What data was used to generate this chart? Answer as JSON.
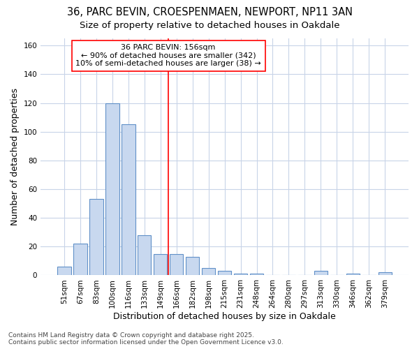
{
  "title_line1": "36, PARC BEVIN, CROESPENMAEN, NEWPORT, NP11 3AN",
  "title_line2": "Size of property relative to detached houses in Oakdale",
  "xlabel": "Distribution of detached houses by size in Oakdale",
  "ylabel": "Number of detached properties",
  "categories": [
    "51sqm",
    "67sqm",
    "83sqm",
    "100sqm",
    "116sqm",
    "133sqm",
    "149sqm",
    "166sqm",
    "182sqm",
    "198sqm",
    "215sqm",
    "231sqm",
    "248sqm",
    "264sqm",
    "280sqm",
    "297sqm",
    "313sqm",
    "330sqm",
    "346sqm",
    "362sqm",
    "379sqm"
  ],
  "values": [
    6,
    22,
    53,
    120,
    105,
    28,
    15,
    15,
    13,
    5,
    3,
    1,
    1,
    0,
    0,
    0,
    3,
    0,
    1,
    0,
    2
  ],
  "bar_color": "#c8d8ef",
  "bar_edge_color": "#6090c8",
  "ylim": [
    0,
    165
  ],
  "yticks": [
    0,
    20,
    40,
    60,
    80,
    100,
    120,
    140,
    160
  ],
  "annotation_title": "36 PARC BEVIN: 156sqm",
  "annotation_line2": "← 90% of detached houses are smaller (342)",
  "annotation_line3": "10% of semi-detached houses are larger (38) →",
  "vline_x_index": 6.5,
  "bg_color": "#ffffff",
  "plot_bg_color": "#ffffff",
  "grid_color": "#c8d4e8",
  "footer_line1": "Contains HM Land Registry data © Crown copyright and database right 2025.",
  "footer_line2": "Contains public sector information licensed under the Open Government Licence v3.0.",
  "title_fontsize": 10.5,
  "subtitle_fontsize": 9.5,
  "axis_label_fontsize": 9,
  "tick_fontsize": 7.5,
  "annotation_fontsize": 8,
  "footer_fontsize": 6.5
}
